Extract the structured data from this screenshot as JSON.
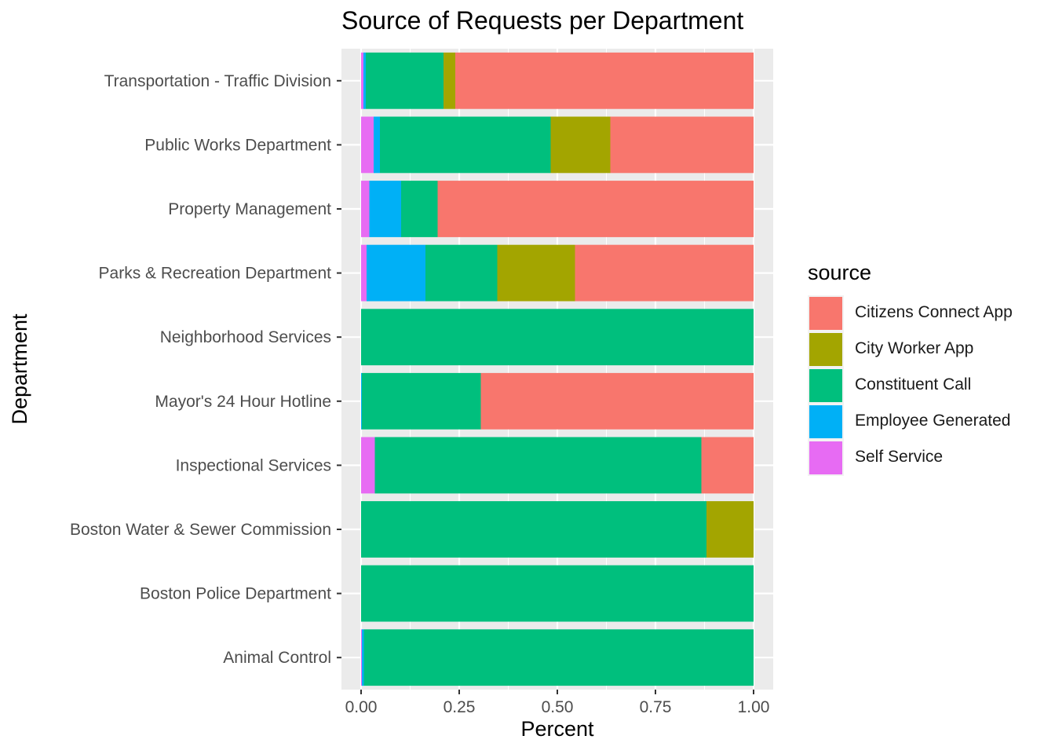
{
  "chart_data": {
    "type": "bar",
    "orientation": "horizontal",
    "stacked": true,
    "title": "Source of Requests per Department",
    "xlabel": "Percent",
    "ylabel": "Department",
    "xlim": [
      0,
      1
    ],
    "x_ticks": [
      "0.00",
      "0.25",
      "0.50",
      "0.75",
      "1.00"
    ],
    "x_tick_values": [
      0,
      0.25,
      0.5,
      0.75,
      1.0
    ],
    "grid": true,
    "legend_position": "right",
    "legend_title": "source",
    "categories": [
      "Transportation - Traffic Division",
      "Public Works Department",
      "Property Management",
      "Parks & Recreation Department",
      "Neighborhood Services",
      "Mayor's 24 Hour Hotline",
      "Inspectional Services",
      "Boston Water & Sewer Commission",
      "Boston Police Department",
      "Animal Control"
    ],
    "stack_order": [
      "Self Service",
      "Employee Generated",
      "Constituent Call",
      "City Worker App",
      "Citizens Connect App"
    ],
    "series": [
      {
        "name": "Citizens Connect App",
        "color": "#F8766D",
        "values": [
          0.76,
          0.365,
          0.805,
          0.455,
          0.0,
          0.695,
          0.133,
          0.0,
          0.0,
          0.0
        ]
      },
      {
        "name": "City Worker App",
        "color": "#A3A500",
        "values": [
          0.03,
          0.152,
          0.0,
          0.198,
          0.0,
          0.0,
          0.0,
          0.12,
          0.0,
          0.0
        ]
      },
      {
        "name": "Constituent Call",
        "color": "#00BF7D",
        "values": [
          0.198,
          0.435,
          0.093,
          0.183,
          1.0,
          0.303,
          0.832,
          0.88,
          1.0,
          0.993
        ]
      },
      {
        "name": "Employee Generated",
        "color": "#00B0F6",
        "values": [
          0.006,
          0.016,
          0.081,
          0.15,
          0.0,
          0.002,
          0.0,
          0.0,
          0.0,
          0.005
        ]
      },
      {
        "name": "Self Service",
        "color": "#E76BF3",
        "values": [
          0.006,
          0.032,
          0.021,
          0.014,
          0.0,
          0.0,
          0.035,
          0.0,
          0.0,
          0.002
        ]
      }
    ]
  }
}
